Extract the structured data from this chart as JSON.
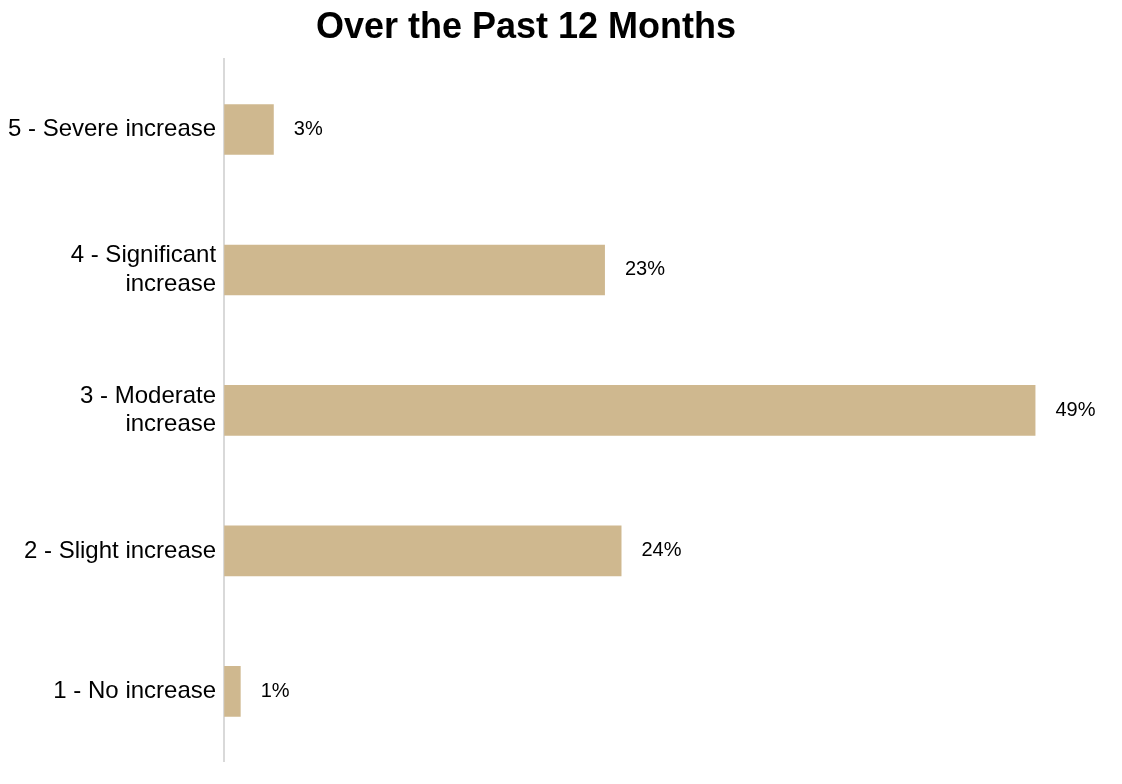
{
  "chart_data": {
    "type": "bar",
    "orientation": "horizontal",
    "title": "Over the Past 12 Months",
    "categories": [
      "5 - Severe increase",
      "4 - Significant increase",
      "3 - Moderate increase",
      "2 - Slight increase",
      "1 - No increase"
    ],
    "values": [
      3,
      23,
      49,
      24,
      1
    ],
    "value_labels": [
      "3%",
      "23%",
      "49%",
      "24%",
      "1%"
    ],
    "color": "#cfb88f",
    "legend": false
  }
}
